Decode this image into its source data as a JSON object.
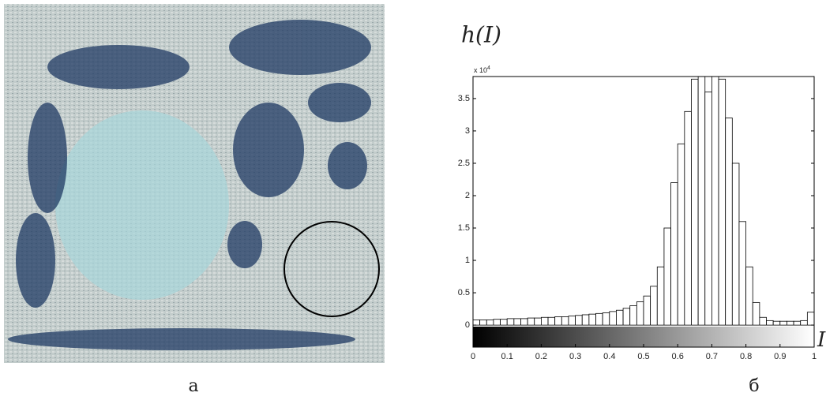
{
  "chart_data": {
    "type": "histogram",
    "ylabel": "h(I)",
    "xlabel": "I",
    "y_scale_label": {
      "base": "x 10",
      "exponent": "4"
    },
    "bins": [
      0,
      0.02,
      0.04,
      0.06,
      0.08,
      0.1,
      0.12,
      0.14,
      0.16,
      0.18,
      0.2,
      0.22,
      0.24,
      0.26,
      0.28,
      0.3,
      0.32,
      0.34,
      0.36,
      0.38,
      0.4,
      0.42,
      0.44,
      0.46,
      0.48,
      0.5,
      0.52,
      0.54,
      0.56,
      0.58,
      0.6,
      0.62,
      0.64,
      0.66,
      0.68,
      0.7,
      0.72,
      0.74,
      0.76,
      0.78,
      0.8,
      0.82,
      0.84,
      0.86,
      0.88,
      0.9,
      0.92,
      0.94,
      0.96,
      0.98,
      1
    ],
    "values": [
      0.08,
      0.08,
      0.08,
      0.09,
      0.09,
      0.1,
      0.1,
      0.1,
      0.11,
      0.11,
      0.12,
      0.12,
      0.13,
      0.13,
      0.14,
      0.15,
      0.16,
      0.17,
      0.18,
      0.19,
      0.21,
      0.23,
      0.26,
      0.3,
      0.36,
      0.45,
      0.6,
      0.9,
      1.5,
      2.2,
      2.8,
      3.3,
      3.8,
      3.85,
      3.6,
      3.85,
      3.8,
      3.2,
      2.5,
      1.6,
      0.9,
      0.35,
      0.12,
      0.07,
      0.06,
      0.06,
      0.06,
      0.06,
      0.07,
      0.2
    ],
    "color": "#ffffff",
    "xlim": [
      0,
      1
    ],
    "xticks": [
      0,
      0.1,
      0.2,
      0.3,
      0.4,
      0.5,
      0.6,
      0.7,
      0.8,
      0.9,
      1
    ],
    "ylim": [
      -0.34,
      3.84
    ],
    "yticks": [
      0,
      0.5,
      1,
      1.5,
      2,
      2.5,
      3,
      3.5
    ]
  },
  "captions": [
    "а",
    "б"
  ]
}
